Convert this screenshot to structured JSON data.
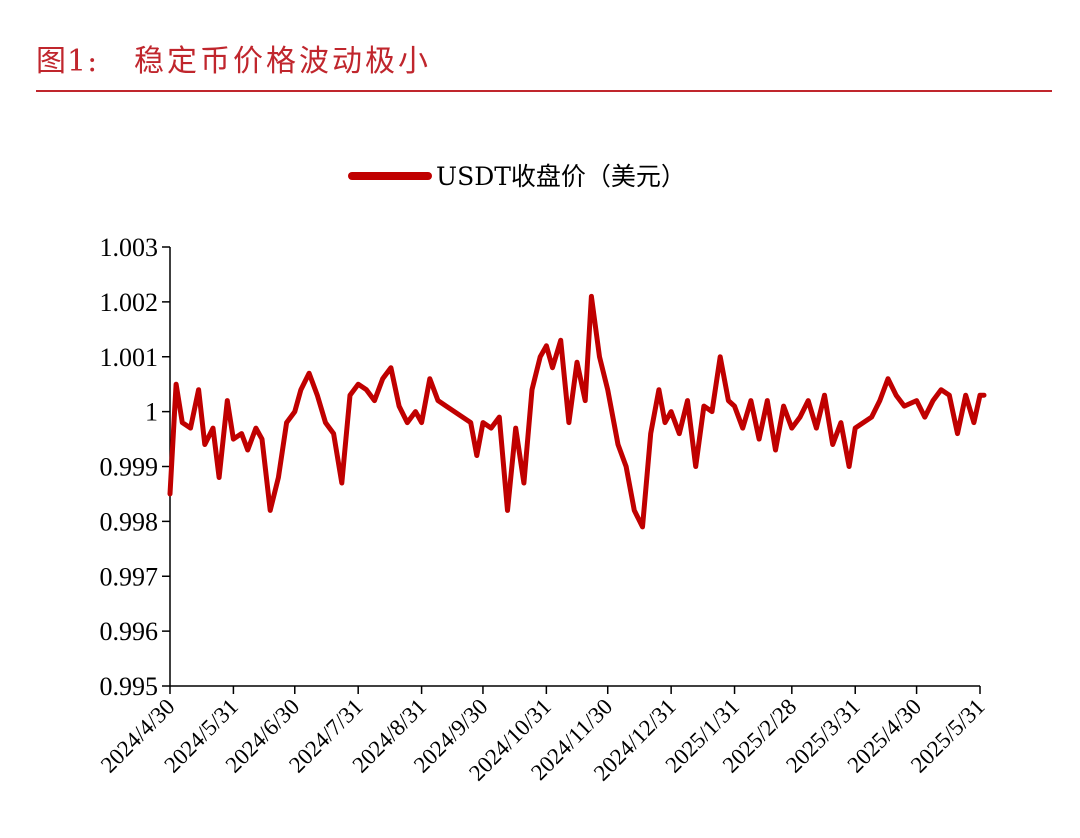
{
  "figure": {
    "label": "图1:",
    "title": "稳定币价格波动极小"
  },
  "colors": {
    "accent": "#c0262d",
    "series": "#c00000",
    "axis": "#000000"
  },
  "chart_data": {
    "type": "line",
    "title": "",
    "xlabel": "",
    "ylabel": "",
    "ylim": [
      0.995,
      1.003
    ],
    "yticks": [
      "1.003",
      "1.002",
      "1.001",
      "1",
      "0.999",
      "0.998",
      "0.997",
      "0.996",
      "0.995"
    ],
    "ytick_values": [
      1.003,
      1.002,
      1.001,
      1.0,
      0.999,
      0.998,
      0.997,
      0.996,
      0.995
    ],
    "xticks": [
      "2024/4/30",
      "2024/5/31",
      "2024/6/30",
      "2024/7/31",
      "2024/8/31",
      "2024/9/30",
      "2024/10/31",
      "2024/11/30",
      "2024/12/31",
      "2025/1/31",
      "2025/2/28",
      "2025/3/31",
      "2025/4/30",
      "2025/5/31"
    ],
    "legend": {
      "position": "top-center"
    },
    "grid": false,
    "series": [
      {
        "name": "USDT收盘价（美元）",
        "x": [
          "2024/4/30",
          "2024/5/3",
          "2024/5/6",
          "2024/5/10",
          "2024/5/14",
          "2024/5/17",
          "2024/5/21",
          "2024/5/24",
          "2024/5/28",
          "2024/5/31",
          "2024/6/4",
          "2024/6/7",
          "2024/6/11",
          "2024/6/14",
          "2024/6/18",
          "2024/6/22",
          "2024/6/26",
          "2024/6/30",
          "2024/7/3",
          "2024/7/7",
          "2024/7/11",
          "2024/7/15",
          "2024/7/19",
          "2024/7/23",
          "2024/7/27",
          "2024/7/31",
          "2024/8/4",
          "2024/8/8",
          "2024/8/12",
          "2024/8/16",
          "2024/8/20",
          "2024/8/24",
          "2024/8/28",
          "2024/8/31",
          "2024/9/4",
          "2024/9/8",
          "2024/9/12",
          "2024/9/16",
          "2024/9/20",
          "2024/9/24",
          "2024/9/27",
          "2024/9/30",
          "2024/10/4",
          "2024/10/8",
          "2024/10/12",
          "2024/10/16",
          "2024/10/20",
          "2024/10/24",
          "2024/10/28",
          "2024/10/31",
          "2024/11/3",
          "2024/11/7",
          "2024/11/11",
          "2024/11/15",
          "2024/11/19",
          "2024/11/22",
          "2024/11/26",
          "2024/11/30",
          "2024/12/3",
          "2024/12/5",
          "2024/12/9",
          "2024/12/13",
          "2024/12/17",
          "2024/12/21",
          "2024/12/25",
          "2024/12/28",
          "2024/12/31",
          "2025/1/4",
          "2025/1/8",
          "2025/1/12",
          "2025/1/16",
          "2025/1/20",
          "2025/1/24",
          "2025/1/28",
          "2025/1/31",
          "2025/2/4",
          "2025/2/8",
          "2025/2/12",
          "2025/2/16",
          "2025/2/20",
          "2025/2/24",
          "2025/2/28",
          "2025/3/4",
          "2025/3/8",
          "2025/3/12",
          "2025/3/16",
          "2025/3/20",
          "2025/3/24",
          "2025/3/28",
          "2025/3/31",
          "2025/4/4",
          "2025/4/8",
          "2025/4/12",
          "2025/4/16",
          "2025/4/20",
          "2025/4/24",
          "2025/4/30",
          "2025/5/4",
          "2025/5/8",
          "2025/5/12",
          "2025/5/16",
          "2025/5/20",
          "2025/5/24",
          "2025/5/28",
          "2025/5/31",
          "2025/6/3"
        ],
        "values": [
          0.9985,
          1.0005,
          0.9998,
          0.9997,
          1.0004,
          0.9994,
          0.9997,
          0.9988,
          1.0002,
          0.9995,
          0.9996,
          0.9993,
          0.9997,
          0.9995,
          0.9982,
          0.9988,
          0.9998,
          1.0,
          1.0004,
          1.0007,
          1.0003,
          0.9998,
          0.9996,
          0.9987,
          1.0003,
          1.0005,
          1.0004,
          1.0002,
          1.0006,
          1.0008,
          1.0001,
          0.9998,
          1.0,
          0.9998,
          1.0006,
          1.0002,
          1.0001,
          1.0,
          0.9999,
          0.9998,
          0.9992,
          0.9998,
          0.9997,
          0.9999,
          0.9982,
          0.9997,
          0.9987,
          1.0004,
          1.001,
          1.0012,
          1.0008,
          1.0013,
          0.9998,
          1.0009,
          1.0002,
          1.0021,
          1.001,
          1.0004,
          0.9998,
          0.9994,
          0.999,
          0.9982,
          0.9979,
          0.9996,
          1.0004,
          0.9998,
          1.0,
          0.9996,
          1.0002,
          0.999,
          1.0001,
          1.0,
          1.001,
          1.0002,
          1.0001,
          0.9997,
          1.0002,
          0.9995,
          1.0002,
          0.9993,
          1.0001,
          0.9997,
          0.9999,
          1.0002,
          0.9997,
          1.0003,
          0.9994,
          0.9998,
          0.999,
          0.9997,
          0.9998,
          0.9999,
          1.0002,
          1.0006,
          1.0003,
          1.0001,
          1.0002,
          0.9999,
          1.0002,
          1.0004,
          1.0003,
          0.9996,
          1.0003,
          0.9998,
          1.0003,
          1.0003
        ]
      }
    ]
  }
}
